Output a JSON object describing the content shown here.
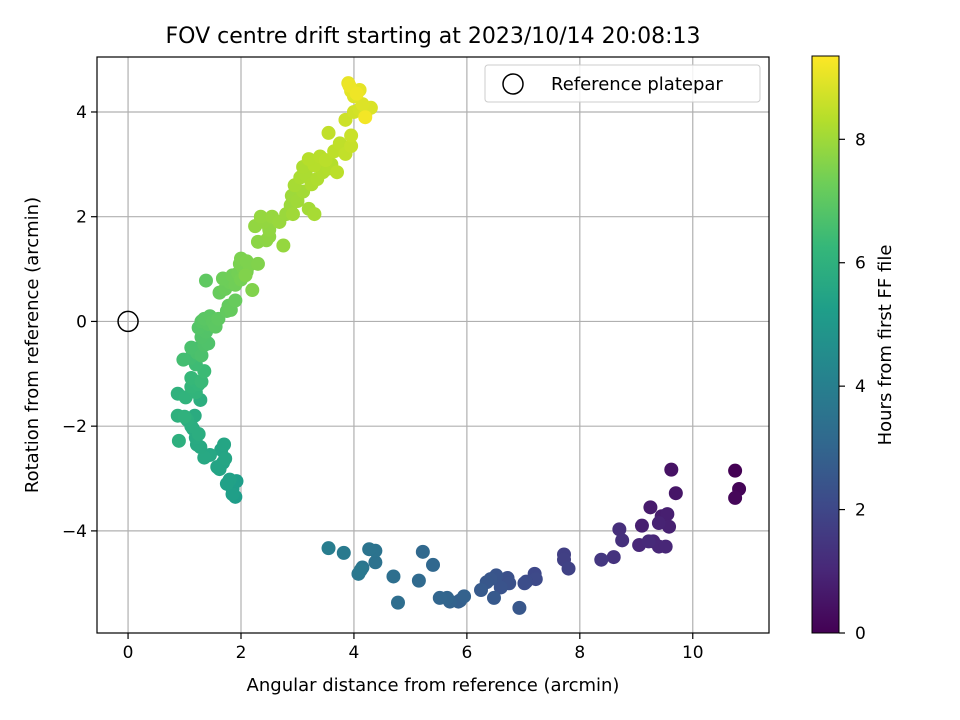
{
  "chart_data": {
    "type": "scatter",
    "title": "FOV centre drift starting at 2023/10/14 20:08:13",
    "xlabel": "Angular distance from reference (arcmin)",
    "ylabel": "Rotation from reference (arcmin)",
    "xlim": [
      -0.55,
      11.35
    ],
    "ylim": [
      -5.95,
      5.05
    ],
    "xticks": [
      0,
      2,
      4,
      6,
      8,
      10
    ],
    "yticks": [
      -4,
      -2,
      0,
      2,
      4
    ],
    "xtick_labels": [
      "0",
      "2",
      "4",
      "6",
      "8",
      "10"
    ],
    "ytick_labels": [
      "−4",
      "−2",
      "0",
      "2",
      "4"
    ],
    "grid": true,
    "legend": {
      "position": "top-right",
      "entries": [
        "Reference platepar"
      ]
    },
    "reference_point": {
      "x": 0,
      "y": 0
    },
    "colorbar": {
      "label": "Hours from first FF file",
      "range": [
        0,
        9.35
      ],
      "ticks": [
        0,
        2,
        4,
        6,
        8
      ],
      "tick_labels": [
        "0",
        "2",
        "4",
        "6",
        "8"
      ],
      "colormap": "viridis",
      "colors": [
        "#440154",
        "#482878",
        "#3e4989",
        "#31688e",
        "#26828e",
        "#1f9e89",
        "#35b779",
        "#6ece58",
        "#b5de2b",
        "#fde725"
      ]
    },
    "series": [
      {
        "points": [
          [
            10.75,
            -2.85,
            0.0
          ],
          [
            10.82,
            -3.2,
            0.1
          ],
          [
            10.75,
            -3.37,
            0.15
          ],
          [
            9.62,
            -2.83,
            0.45
          ],
          [
            9.7,
            -3.28,
            0.55
          ],
          [
            9.25,
            -3.55,
            0.7
          ],
          [
            9.1,
            -3.9,
            0.8
          ],
          [
            9.45,
            -3.72,
            0.75
          ],
          [
            9.55,
            -3.68,
            0.8
          ],
          [
            9.58,
            -3.92,
            0.85
          ],
          [
            9.4,
            -3.85,
            0.9
          ],
          [
            9.3,
            -4.2,
            0.95
          ],
          [
            9.4,
            -4.3,
            1.0
          ],
          [
            9.52,
            -4.3,
            1.0
          ],
          [
            9.05,
            -4.27,
            1.05
          ],
          [
            9.22,
            -4.2,
            1.1
          ],
          [
            8.7,
            -3.97,
            1.25
          ],
          [
            8.75,
            -4.18,
            1.3
          ],
          [
            8.6,
            -4.5,
            1.4
          ],
          [
            8.38,
            -4.55,
            1.5
          ],
          [
            7.72,
            -4.45,
            1.75
          ],
          [
            7.72,
            -4.55,
            1.8
          ],
          [
            7.8,
            -4.72,
            1.85
          ],
          [
            7.2,
            -4.82,
            2.05
          ],
          [
            7.22,
            -4.92,
            2.1
          ],
          [
            7.05,
            -4.97,
            2.15
          ],
          [
            7.02,
            -5.0,
            2.2
          ],
          [
            6.72,
            -4.9,
            2.3
          ],
          [
            6.75,
            -5.0,
            2.35
          ],
          [
            6.6,
            -5.08,
            2.4
          ],
          [
            6.52,
            -4.85,
            2.45
          ],
          [
            6.42,
            -4.92,
            2.5
          ],
          [
            6.35,
            -4.98,
            2.55
          ],
          [
            6.48,
            -5.28,
            2.6
          ],
          [
            6.25,
            -5.13,
            2.65
          ],
          [
            6.93,
            -5.47,
            2.55
          ],
          [
            5.88,
            -5.33,
            2.8
          ],
          [
            5.85,
            -5.35,
            2.85
          ],
          [
            5.95,
            -5.25,
            2.9
          ],
          [
            5.7,
            -5.35,
            2.95
          ],
          [
            5.65,
            -5.28,
            3.0
          ],
          [
            5.52,
            -5.28,
            3.05
          ],
          [
            5.4,
            -4.65,
            3.1
          ],
          [
            5.22,
            -4.4,
            3.15
          ],
          [
            5.15,
            -4.95,
            3.2
          ],
          [
            4.78,
            -5.37,
            3.35
          ],
          [
            4.7,
            -4.87,
            3.4
          ],
          [
            4.38,
            -4.6,
            3.5
          ],
          [
            4.38,
            -4.38,
            3.55
          ],
          [
            4.27,
            -4.35,
            3.6
          ],
          [
            4.15,
            -4.7,
            3.65
          ],
          [
            4.08,
            -4.82,
            3.7
          ],
          [
            4.12,
            -4.75,
            3.75
          ],
          [
            3.82,
            -4.42,
            3.85
          ],
          [
            3.55,
            -4.33,
            3.95
          ],
          [
            1.9,
            -3.35,
            5.15
          ],
          [
            1.85,
            -3.2,
            5.2
          ],
          [
            1.92,
            -3.05,
            5.2
          ],
          [
            1.85,
            -3.3,
            5.25
          ],
          [
            1.8,
            -3.02,
            5.3
          ],
          [
            1.75,
            -3.1,
            5.3
          ],
          [
            1.68,
            -2.7,
            5.4
          ],
          [
            1.62,
            -2.82,
            5.45
          ],
          [
            1.58,
            -2.78,
            5.45
          ],
          [
            1.65,
            -2.45,
            5.45
          ],
          [
            1.7,
            -2.35,
            5.5
          ],
          [
            1.72,
            -2.62,
            5.5
          ],
          [
            1.45,
            -2.55,
            5.55
          ],
          [
            1.35,
            -2.6,
            5.6
          ],
          [
            1.28,
            -2.4,
            5.62
          ],
          [
            1.22,
            -2.35,
            5.65
          ],
          [
            1.2,
            -2.22,
            5.68
          ],
          [
            1.15,
            -2.05,
            5.7
          ],
          [
            1.18,
            -1.8,
            5.75
          ],
          [
            1.12,
            -2.0,
            5.8
          ],
          [
            1.25,
            -2.15,
            5.8
          ],
          [
            1.28,
            -1.5,
            5.85
          ],
          [
            1.05,
            -1.88,
            5.85
          ],
          [
            0.9,
            -2.28,
            5.9
          ],
          [
            0.88,
            -1.8,
            5.95
          ],
          [
            1.0,
            -1.82,
            6.0
          ],
          [
            0.88,
            -1.38,
            6.0
          ],
          [
            1.02,
            -1.45,
            6.05
          ],
          [
            1.2,
            -1.35,
            6.1
          ],
          [
            1.12,
            -1.25,
            6.15
          ],
          [
            1.2,
            -1.15,
            6.2
          ],
          [
            1.25,
            -1.2,
            6.2
          ],
          [
            1.12,
            -1.08,
            6.25
          ],
          [
            1.3,
            -1.15,
            6.3
          ],
          [
            1.35,
            -0.95,
            6.35
          ],
          [
            1.2,
            -0.82,
            6.4
          ],
          [
            1.1,
            -0.7,
            6.45
          ],
          [
            0.98,
            -0.73,
            6.5
          ],
          [
            1.18,
            -0.52,
            6.55
          ],
          [
            1.22,
            -0.6,
            6.6
          ],
          [
            1.12,
            -0.5,
            6.62
          ],
          [
            1.3,
            -0.65,
            6.65
          ],
          [
            1.35,
            -0.45,
            6.7
          ],
          [
            1.42,
            -0.42,
            6.72
          ],
          [
            1.3,
            -0.3,
            6.75
          ],
          [
            1.38,
            -0.2,
            6.78
          ],
          [
            1.25,
            -0.12,
            6.8
          ],
          [
            1.3,
            0.0,
            6.85
          ],
          [
            1.42,
            -0.05,
            6.88
          ],
          [
            1.35,
            0.05,
            6.9
          ],
          [
            1.45,
            0.1,
            6.92
          ],
          [
            1.5,
            0.0,
            6.95
          ],
          [
            1.55,
            -0.1,
            6.97
          ],
          [
            1.6,
            0.05,
            7.0
          ],
          [
            1.75,
            0.2,
            7.05
          ],
          [
            1.78,
            0.3,
            7.08
          ],
          [
            1.82,
            0.22,
            7.1
          ],
          [
            1.9,
            0.4,
            7.15
          ],
          [
            1.62,
            0.55,
            7.15
          ],
          [
            1.72,
            0.62,
            7.2
          ],
          [
            1.8,
            0.75,
            7.25
          ],
          [
            1.68,
            0.82,
            7.25
          ],
          [
            1.85,
            0.88,
            7.3
          ],
          [
            1.9,
            0.7,
            7.3
          ],
          [
            1.95,
            0.92,
            7.35
          ],
          [
            2.0,
            0.8,
            7.38
          ],
          [
            2.05,
            1.0,
            7.4
          ],
          [
            2.1,
            0.95,
            7.42
          ],
          [
            1.98,
            1.1,
            7.45
          ],
          [
            2.0,
            1.2,
            7.48
          ],
          [
            2.1,
            1.15,
            7.5
          ],
          [
            2.15,
            1.08,
            7.5
          ],
          [
            2.2,
            0.6,
            7.55
          ],
          [
            2.3,
            1.1,
            7.55
          ],
          [
            2.08,
            0.88,
            7.55
          ],
          [
            1.38,
            0.78,
            7.0
          ],
          [
            2.3,
            1.52,
            7.7
          ],
          [
            2.45,
            1.55,
            7.72
          ],
          [
            2.5,
            1.62,
            7.75
          ],
          [
            2.5,
            1.75,
            7.78
          ],
          [
            2.25,
            1.82,
            7.8
          ],
          [
            2.4,
            1.9,
            7.82
          ],
          [
            2.35,
            2.0,
            7.85
          ],
          [
            2.55,
            2.0,
            7.87
          ],
          [
            2.75,
            1.45,
            7.85
          ],
          [
            2.68,
            1.9,
            7.9
          ],
          [
            2.8,
            2.05,
            7.92
          ],
          [
            2.88,
            2.22,
            7.95
          ],
          [
            2.9,
            2.4,
            7.97
          ],
          [
            3.0,
            2.3,
            8.0
          ],
          [
            2.92,
            2.05,
            8.0
          ],
          [
            3.1,
            2.48,
            8.05
          ],
          [
            3.2,
            2.15,
            8.05
          ],
          [
            3.3,
            2.05,
            8.1
          ],
          [
            2.95,
            2.6,
            8.1
          ],
          [
            3.05,
            2.75,
            8.15
          ],
          [
            3.15,
            2.8,
            8.18
          ],
          [
            3.25,
            2.62,
            8.2
          ],
          [
            3.35,
            2.72,
            8.22
          ],
          [
            3.45,
            2.85,
            8.25
          ],
          [
            3.55,
            2.92,
            8.28
          ],
          [
            3.6,
            3.0,
            8.3
          ],
          [
            3.3,
            2.98,
            8.32
          ],
          [
            3.4,
            3.15,
            8.35
          ],
          [
            3.5,
            3.08,
            8.38
          ],
          [
            3.7,
            2.85,
            8.4
          ],
          [
            3.65,
            3.25,
            8.42
          ],
          [
            3.75,
            3.4,
            8.45
          ],
          [
            3.55,
            3.6,
            8.48
          ],
          [
            3.85,
            3.2,
            8.5
          ],
          [
            3.95,
            3.35,
            8.55
          ],
          [
            3.95,
            3.55,
            8.6
          ],
          [
            3.85,
            3.85,
            8.65
          ],
          [
            4.0,
            4.0,
            8.7
          ],
          [
            4.1,
            4.05,
            8.75
          ],
          [
            4.2,
            3.95,
            8.8
          ],
          [
            4.3,
            4.08,
            8.85
          ],
          [
            4.15,
            4.15,
            8.88
          ],
          [
            4.0,
            4.3,
            8.9
          ],
          [
            3.95,
            4.4,
            8.95
          ],
          [
            4.1,
            4.42,
            9.0
          ],
          [
            3.9,
            4.55,
            9.05
          ],
          [
            3.92,
            4.5,
            9.1
          ],
          [
            4.05,
            4.35,
            9.15
          ],
          [
            4.2,
            3.9,
            9.2
          ],
          [
            3.3,
            3.05,
            8.3
          ],
          [
            3.2,
            3.1,
            8.33
          ],
          [
            3.1,
            2.95,
            8.2
          ]
        ]
      }
    ]
  }
}
